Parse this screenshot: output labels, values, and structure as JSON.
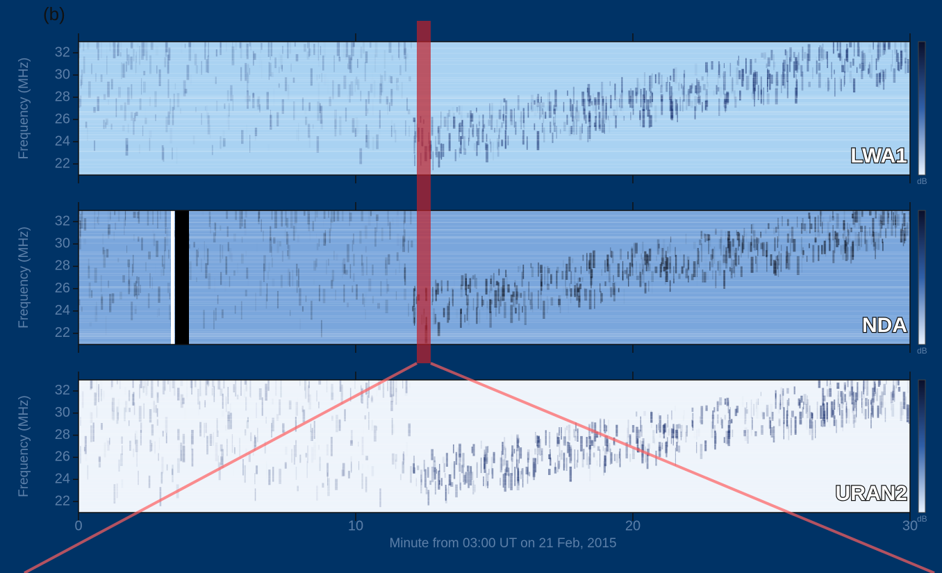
{
  "panel_label": "(b)",
  "x_axis": {
    "label": "Minute from 03:00 UT on 21 Feb, 2015",
    "lim": [
      0,
      30
    ],
    "ticks": [
      0,
      10,
      20,
      30
    ]
  },
  "chart_data": [
    {
      "type": "spectrogram",
      "label": "LWA1",
      "ylabel": "Frequency (MHz)",
      "ylim": [
        21,
        33
      ],
      "yticks": [
        22,
        24,
        26,
        28,
        30,
        32
      ],
      "colorbar_unit": "dB"
    },
    {
      "type": "spectrogram",
      "label": "NDA",
      "ylabel": "Frequency (MHz)",
      "ylim": [
        21,
        33
      ],
      "yticks": [
        22,
        24,
        26,
        28,
        30,
        32
      ],
      "colorbar_unit": "dB"
    },
    {
      "type": "spectrogram",
      "label": "URAN2",
      "ylabel": "Frequency (MHz)",
      "ylim": [
        21,
        33
      ],
      "yticks": [
        22,
        24,
        26,
        28,
        30,
        32
      ],
      "colorbar_unit": "dB"
    }
  ]
}
